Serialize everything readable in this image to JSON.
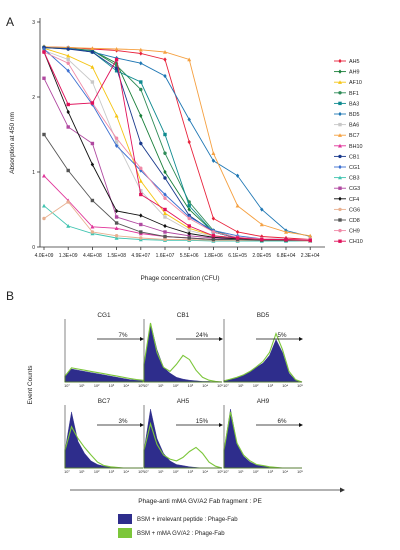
{
  "chart_data": [
    {
      "type": "line",
      "panel_label": "A",
      "ylabel": "Absorption at 450 nm",
      "xlabel": "Phage concentration (CFU)",
      "y_ticks": [
        "0",
        "1",
        "2",
        "3"
      ],
      "ylim": [
        0,
        3
      ],
      "categories": [
        "4.0E+09",
        "1.3E+09",
        "4.4E+08",
        "1.5E+08",
        "4.9E+07",
        "1.6E+07",
        "5.5E+06",
        "1.8E+06",
        "6.1E+05",
        "2.0E+05",
        "6.8E+04",
        "2.3E+04"
      ],
      "legend_position": "right",
      "series": [
        {
          "name": "AH5",
          "color": "#e8233c",
          "marker": "diamond",
          "values": [
            2.67,
            2.66,
            2.64,
            2.62,
            2.58,
            2.5,
            1.4,
            0.38,
            0.2,
            0.14,
            0.12,
            0.1
          ]
        },
        {
          "name": "AH9",
          "color": "#1a7f3a",
          "marker": "diamond",
          "values": [
            2.67,
            2.65,
            2.62,
            2.45,
            1.75,
            1.0,
            0.5,
            0.2,
            0.12,
            0.1,
            0.1,
            0.09
          ]
        },
        {
          "name": "AF10",
          "color": "#f5c516",
          "marker": "triangle",
          "values": [
            2.65,
            2.55,
            2.4,
            1.75,
            0.88,
            0.45,
            0.25,
            0.15,
            0.12,
            0.1,
            0.1,
            0.1
          ]
        },
        {
          "name": "BF1",
          "color": "#2e8b57",
          "marker": "circle",
          "values": [
            2.66,
            2.64,
            2.62,
            2.42,
            2.1,
            1.25,
            0.6,
            0.22,
            0.12,
            0.1,
            0.1,
            0.1
          ]
        },
        {
          "name": "BA3",
          "color": "#0e8a8f",
          "marker": "square",
          "values": [
            2.66,
            2.65,
            2.6,
            2.35,
            2.2,
            1.5,
            0.55,
            0.2,
            0.12,
            0.1,
            0.09,
            0.09
          ]
        },
        {
          "name": "BD5",
          "color": "#1f77b4",
          "marker": "diamond",
          "values": [
            2.66,
            2.65,
            2.6,
            2.52,
            2.45,
            2.28,
            1.7,
            1.15,
            0.95,
            0.5,
            0.22,
            0.14
          ]
        },
        {
          "name": "BA6",
          "color": "#c8c8c8",
          "marker": "square",
          "values": [
            2.62,
            2.5,
            2.2,
            1.4,
            0.75,
            0.4,
            0.22,
            0.14,
            0.12,
            0.1,
            0.1,
            0.1
          ]
        },
        {
          "name": "BC7",
          "color": "#f5a040",
          "marker": "triangle",
          "values": [
            2.67,
            2.66,
            2.65,
            2.64,
            2.63,
            2.6,
            2.5,
            1.25,
            0.55,
            0.3,
            0.2,
            0.15
          ]
        },
        {
          "name": "BH10",
          "color": "#e0359a",
          "marker": "triangle",
          "values": [
            0.95,
            0.62,
            0.27,
            0.25,
            0.18,
            0.14,
            0.12,
            0.1,
            0.09,
            0.09,
            0.09,
            0.08
          ]
        },
        {
          "name": "CB1",
          "color": "#1a3a8c",
          "marker": "circle",
          "values": [
            2.66,
            2.64,
            2.6,
            2.38,
            1.38,
            0.92,
            0.42,
            0.2,
            0.12,
            0.1,
            0.1,
            0.09
          ]
        },
        {
          "name": "CG1",
          "color": "#3b6fd0",
          "marker": "diamond",
          "values": [
            2.64,
            2.35,
            1.9,
            1.35,
            1.02,
            0.7,
            0.4,
            0.22,
            0.15,
            0.11,
            0.1,
            0.1
          ]
        },
        {
          "name": "CB3",
          "color": "#40c4b0",
          "marker": "triangle",
          "values": [
            0.55,
            0.28,
            0.18,
            0.12,
            0.1,
            0.09,
            0.09,
            0.08,
            0.08,
            0.08,
            0.08,
            0.08
          ]
        },
        {
          "name": "CG3",
          "color": "#b048a0",
          "marker": "square",
          "values": [
            2.25,
            1.6,
            1.38,
            0.4,
            0.3,
            0.2,
            0.15,
            0.12,
            0.1,
            0.1,
            0.09,
            0.09
          ]
        },
        {
          "name": "CF4",
          "color": "#111111",
          "marker": "diamond",
          "values": [
            2.6,
            1.8,
            1.1,
            0.48,
            0.42,
            0.28,
            0.18,
            0.13,
            0.11,
            0.1,
            0.1,
            0.09
          ]
        },
        {
          "name": "CG6",
          "color": "#e8b090",
          "marker": "circle",
          "values": [
            0.38,
            0.6,
            0.2,
            0.15,
            0.12,
            0.1,
            0.1,
            0.09,
            0.09,
            0.09,
            0.09,
            0.08
          ]
        },
        {
          "name": "CD8",
          "color": "#555555",
          "marker": "square",
          "values": [
            1.5,
            1.02,
            0.62,
            0.32,
            0.2,
            0.14,
            0.12,
            0.1,
            0.1,
            0.09,
            0.09,
            0.09
          ]
        },
        {
          "name": "CH9",
          "color": "#f08aa8",
          "marker": "circle",
          "values": [
            2.6,
            2.45,
            1.92,
            1.45,
            1.05,
            0.65,
            0.38,
            0.2,
            0.13,
            0.11,
            0.1,
            0.1
          ]
        },
        {
          "name": "CH10",
          "color": "#e0105a",
          "marker": "square",
          "values": [
            2.6,
            1.9,
            1.92,
            2.5,
            0.7,
            0.5,
            0.28,
            0.15,
            0.12,
            0.1,
            0.1,
            0.09
          ]
        }
      ]
    },
    {
      "type": "area",
      "panel_label": "B",
      "ylabel": "Event Counts",
      "xlabel": "Phage-anti mMA GV/A2 Fab fragment : PE",
      "x_ticks": [
        "10°",
        "10¹",
        "10²",
        "10³",
        "10⁴",
        "10⁵"
      ],
      "legend": [
        {
          "label": "BSM + irrelevant peptide : Phage-Fab",
          "color": "#2e2d8c"
        },
        {
          "label": "BSM + mMA GV/A2 : Phage-Fab",
          "color": "#7cc63a"
        }
      ],
      "panels": [
        {
          "title": "CG1",
          "percent": "7%",
          "control_profile": [
            0.1,
            0.22,
            0.2,
            0.18,
            0.16,
            0.14,
            0.12,
            0.1,
            0.08,
            0.06,
            0.04,
            0.03,
            0.02
          ],
          "specific_profile": [
            0.1,
            0.24,
            0.22,
            0.2,
            0.18,
            0.16,
            0.14,
            0.12,
            0.1,
            0.08,
            0.06,
            0.04,
            0.03
          ]
        },
        {
          "title": "CB1",
          "percent": "24%",
          "control_profile": [
            0.3,
            1.0,
            0.55,
            0.25,
            0.15,
            0.08,
            0.05,
            0.03,
            0.02,
            0.01,
            0.01,
            0.0,
            0.0
          ],
          "specific_profile": [
            0.3,
            1.0,
            0.5,
            0.25,
            0.18,
            0.3,
            0.45,
            0.38,
            0.2,
            0.08,
            0.03,
            0.01,
            0.0
          ]
        },
        {
          "title": "BD5",
          "percent": "5%",
          "control_profile": [
            0.02,
            0.05,
            0.08,
            0.12,
            0.18,
            0.25,
            0.32,
            0.45,
            0.72,
            0.5,
            0.15,
            0.03,
            0.0
          ],
          "specific_profile": [
            0.02,
            0.05,
            0.08,
            0.12,
            0.18,
            0.26,
            0.35,
            0.5,
            0.82,
            0.55,
            0.18,
            0.04,
            0.0
          ]
        },
        {
          "title": "BC7",
          "percent": "3%",
          "control_profile": [
            0.3,
            0.95,
            0.45,
            0.25,
            0.12,
            0.06,
            0.03,
            0.02,
            0.01,
            0.0,
            0.0,
            0.0,
            0.0
          ],
          "specific_profile": [
            0.3,
            0.7,
            0.5,
            0.35,
            0.22,
            0.1,
            0.04,
            0.02,
            0.01,
            0.0,
            0.0,
            0.0,
            0.0
          ]
        },
        {
          "title": "AH5",
          "percent": "15%",
          "control_profile": [
            0.3,
            1.0,
            0.5,
            0.25,
            0.12,
            0.06,
            0.04,
            0.02,
            0.01,
            0.0,
            0.0,
            0.0,
            0.0
          ],
          "specific_profile": [
            0.3,
            0.75,
            0.4,
            0.22,
            0.15,
            0.12,
            0.18,
            0.28,
            0.35,
            0.25,
            0.1,
            0.03,
            0.0
          ]
        },
        {
          "title": "AH9",
          "percent": "6%",
          "control_profile": [
            0.3,
            1.0,
            0.4,
            0.2,
            0.1,
            0.05,
            0.03,
            0.02,
            0.01,
            0.0,
            0.0,
            0.0,
            0.0
          ],
          "specific_profile": [
            0.3,
            0.95,
            0.42,
            0.22,
            0.12,
            0.06,
            0.04,
            0.02,
            0.01,
            0.0,
            0.0,
            0.0,
            0.0
          ]
        }
      ]
    }
  ]
}
